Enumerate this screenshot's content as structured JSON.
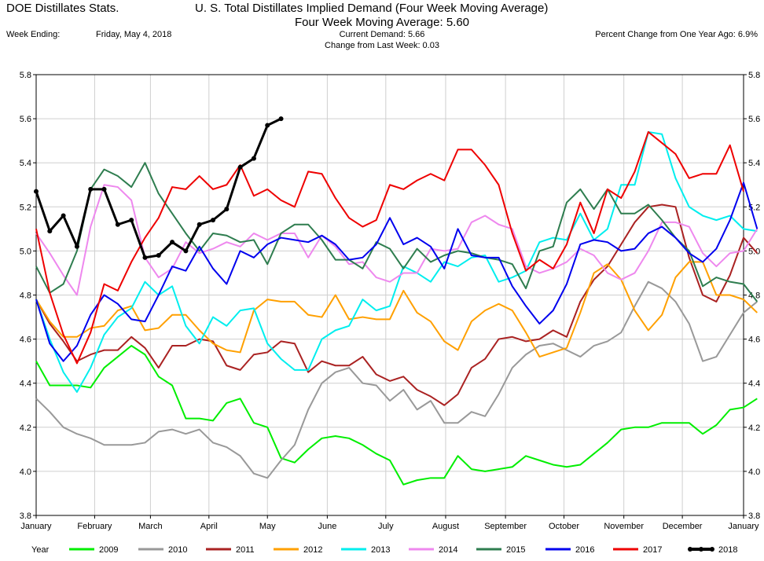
{
  "header": {
    "source": "DOE Distillates Stats.",
    "title": "U. S. Total Distillates Implied Demand  (Four Week Moving Average)",
    "subtitle": "Four Week Moving Average:  5.60",
    "week_ending_label": "Week Ending:",
    "week_ending_value": "Friday, May 4, 2018",
    "current_demand": "Current Demand:  5.66",
    "change_last_week": "Change from Last Week:  0.03",
    "pct_change": "Percent Change from One Year Ago:  6.9%"
  },
  "chart_data": {
    "type": "line",
    "title": "U. S. Total Distillates Implied Demand  (Four Week Moving Average)",
    "xlabel": "",
    "ylabel": "",
    "ylim": [
      3.8,
      5.8
    ],
    "yticks": [
      "3.8",
      "4.0",
      "4.2",
      "4.4",
      "4.6",
      "4.8",
      "5.0",
      "5.2",
      "5.4",
      "5.6",
      "5.8"
    ],
    "xlim": [
      0,
      52
    ],
    "xticks": [
      {
        "label": "January",
        "week": 0
      },
      {
        "label": "February",
        "week": 4.3
      },
      {
        "label": "March",
        "week": 8.4
      },
      {
        "label": "April",
        "week": 12.7
      },
      {
        "label": "May",
        "week": 17
      },
      {
        "label": "June",
        "week": 21.4
      },
      {
        "label": "July",
        "week": 25.7
      },
      {
        "label": "August",
        "week": 30.1
      },
      {
        "label": "September",
        "week": 34.5
      },
      {
        "label": "October",
        "week": 38.8
      },
      {
        "label": "November",
        "week": 43.2
      },
      {
        "label": "December",
        "week": 47.5
      },
      {
        "label": "January",
        "week": 52
      }
    ],
    "grid": true,
    "legend_position": "bottom",
    "legend_label": "Year",
    "series": [
      {
        "name": "2009",
        "color": "#00ee00",
        "width": 2,
        "marker": false,
        "values": [
          4.5,
          4.39,
          4.39,
          4.39,
          4.38,
          4.47,
          4.52,
          4.57,
          4.53,
          4.43,
          4.39,
          4.24,
          4.24,
          4.23,
          4.31,
          4.33,
          4.22,
          4.2,
          4.06,
          4.04,
          4.1,
          4.15,
          4.16,
          4.15,
          4.12,
          4.08,
          4.05,
          3.94,
          3.96,
          3.97,
          3.97,
          4.07,
          4.01,
          4.0,
          4.01,
          4.02,
          4.07,
          4.05,
          4.03,
          4.02,
          4.03,
          4.08,
          4.13,
          4.19,
          4.2,
          4.2,
          4.22,
          4.22,
          4.22,
          4.17,
          4.21,
          4.28,
          4.29,
          4.33
        ]
      },
      {
        "name": "2010",
        "color": "#999999",
        "width": 2,
        "marker": false,
        "values": [
          4.33,
          4.27,
          4.2,
          4.17,
          4.15,
          4.12,
          4.12,
          4.12,
          4.13,
          4.18,
          4.19,
          4.17,
          4.19,
          4.13,
          4.11,
          4.07,
          3.99,
          3.97,
          4.05,
          4.12,
          4.28,
          4.4,
          4.45,
          4.47,
          4.4,
          4.39,
          4.32,
          4.37,
          4.28,
          4.32,
          4.22,
          4.22,
          4.27,
          4.25,
          4.35,
          4.47,
          4.53,
          4.57,
          4.58,
          4.55,
          4.52,
          4.57,
          4.59,
          4.63,
          4.75,
          4.86,
          4.83,
          4.77,
          4.67,
          4.5,
          4.52,
          4.62,
          4.72,
          4.77
        ]
      },
      {
        "name": "2011",
        "color": "#aa2222",
        "width": 2,
        "marker": false,
        "values": [
          4.78,
          4.67,
          4.59,
          4.5,
          4.53,
          4.55,
          4.55,
          4.61,
          4.56,
          4.47,
          4.57,
          4.57,
          4.6,
          4.59,
          4.48,
          4.46,
          4.53,
          4.54,
          4.59,
          4.58,
          4.45,
          4.5,
          4.48,
          4.48,
          4.52,
          4.44,
          4.41,
          4.43,
          4.37,
          4.34,
          4.3,
          4.35,
          4.47,
          4.51,
          4.6,
          4.61,
          4.59,
          4.6,
          4.64,
          4.61,
          4.77,
          4.87,
          4.93,
          5.03,
          5.13,
          5.2,
          5.21,
          5.2,
          4.97,
          4.8,
          4.77,
          4.89,
          5.06,
          4.99
        ]
      },
      {
        "name": "2012",
        "color": "#ffa000",
        "width": 2,
        "marker": false,
        "values": [
          4.78,
          4.68,
          4.61,
          4.61,
          4.65,
          4.66,
          4.73,
          4.75,
          4.64,
          4.65,
          4.71,
          4.71,
          4.64,
          4.58,
          4.55,
          4.54,
          4.73,
          4.78,
          4.77,
          4.77,
          4.71,
          4.7,
          4.8,
          4.69,
          4.7,
          4.69,
          4.69,
          4.82,
          4.72,
          4.68,
          4.59,
          4.55,
          4.68,
          4.73,
          4.76,
          4.73,
          4.63,
          4.52,
          4.54,
          4.56,
          4.72,
          4.9,
          4.94,
          4.87,
          4.73,
          4.64,
          4.71,
          4.88,
          4.95,
          4.95,
          4.8,
          4.8,
          4.78,
          4.72
        ]
      },
      {
        "name": "2013",
        "color": "#00eeee",
        "width": 2,
        "marker": false,
        "values": [
          4.78,
          4.6,
          4.45,
          4.36,
          4.47,
          4.62,
          4.7,
          4.74,
          4.86,
          4.8,
          4.84,
          4.66,
          4.58,
          4.7,
          4.66,
          4.73,
          4.74,
          4.58,
          4.51,
          4.46,
          4.46,
          4.6,
          4.64,
          4.66,
          4.78,
          4.73,
          4.75,
          4.93,
          4.9,
          4.86,
          4.95,
          4.93,
          4.97,
          4.98,
          4.86,
          4.88,
          4.91,
          5.04,
          5.06,
          5.05,
          5.17,
          5.05,
          5.1,
          5.3,
          5.3,
          5.54,
          5.53,
          5.33,
          5.2,
          5.16,
          5.14,
          5.16,
          5.1,
          5.09
        ]
      },
      {
        "name": "2014",
        "color": "#ee88ee",
        "width": 2,
        "marker": false,
        "values": [
          5.08,
          4.99,
          4.89,
          4.8,
          5.11,
          5.3,
          5.29,
          5.23,
          4.97,
          4.88,
          4.92,
          5.04,
          4.99,
          5.01,
          5.04,
          5.02,
          5.08,
          5.05,
          5.08,
          5.08,
          4.97,
          5.07,
          5.02,
          4.94,
          4.95,
          4.88,
          4.86,
          4.9,
          4.9,
          5.01,
          5.0,
          5.01,
          5.13,
          5.16,
          5.12,
          5.1,
          4.93,
          4.9,
          4.92,
          4.95,
          5.01,
          4.98,
          4.9,
          4.87,
          4.9,
          5.0,
          5.13,
          5.13,
          5.11,
          4.99,
          4.93,
          4.99,
          5.0,
          5.1
        ]
      },
      {
        "name": "2015",
        "color": "#2e7d4f",
        "width": 2,
        "marker": false,
        "values": [
          4.93,
          4.81,
          4.85,
          5.0,
          5.28,
          5.37,
          5.34,
          5.29,
          5.4,
          5.26,
          5.17,
          5.08,
          5.0,
          5.08,
          5.07,
          5.04,
          5.05,
          4.94,
          5.08,
          5.12,
          5.12,
          5.05,
          4.96,
          4.96,
          4.92,
          5.04,
          5.01,
          4.92,
          5.01,
          4.95,
          4.98,
          5.0,
          4.99,
          4.97,
          4.96,
          4.94,
          4.83,
          5.0,
          5.02,
          5.22,
          5.28,
          5.19,
          5.28,
          5.17,
          5.17,
          5.21,
          5.14,
          5.06,
          5.0,
          4.84,
          4.88,
          4.86,
          4.85,
          4.77
        ]
      },
      {
        "name": "2016",
        "color": "#0000ee",
        "width": 2,
        "marker": false,
        "values": [
          4.78,
          4.58,
          4.5,
          4.57,
          4.71,
          4.8,
          4.76,
          4.69,
          4.68,
          4.8,
          4.93,
          4.91,
          5.02,
          4.92,
          4.85,
          5.0,
          4.97,
          5.03,
          5.06,
          5.05,
          5.04,
          5.07,
          5.03,
          4.96,
          4.97,
          5.03,
          5.15,
          5.03,
          5.06,
          5.02,
          4.92,
          5.1,
          4.98,
          4.97,
          4.97,
          4.84,
          4.75,
          4.67,
          4.73,
          4.85,
          5.03,
          5.05,
          5.04,
          5.0,
          5.01,
          5.08,
          5.11,
          5.06,
          4.99,
          4.95,
          5.01,
          5.14,
          5.31,
          5.1
        ]
      },
      {
        "name": "2017",
        "color": "#ee0000",
        "width": 2,
        "marker": false,
        "values": [
          5.1,
          4.81,
          4.62,
          4.49,
          4.63,
          4.85,
          4.82,
          4.95,
          5.06,
          5.15,
          5.29,
          5.28,
          5.34,
          5.28,
          5.3,
          5.39,
          5.25,
          5.28,
          5.23,
          5.2,
          5.36,
          5.35,
          5.24,
          5.15,
          5.11,
          5.14,
          5.3,
          5.28,
          5.32,
          5.35,
          5.32,
          5.46,
          5.46,
          5.39,
          5.3,
          5.08,
          4.91,
          4.96,
          4.92,
          5.03,
          5.22,
          5.08,
          5.28,
          5.24,
          5.36,
          5.54,
          5.49,
          5.44,
          5.33,
          5.35,
          5.35,
          5.48,
          5.27
        ]
      },
      {
        "name": "2018",
        "color": "#000000",
        "width": 3,
        "marker": true,
        "values": [
          5.27,
          5.09,
          5.16,
          5.02,
          5.28,
          5.28,
          5.12,
          5.14,
          4.97,
          4.98,
          5.04,
          5.0,
          5.12,
          5.14,
          5.19,
          5.38,
          5.42,
          5.57,
          5.6
        ]
      }
    ]
  }
}
